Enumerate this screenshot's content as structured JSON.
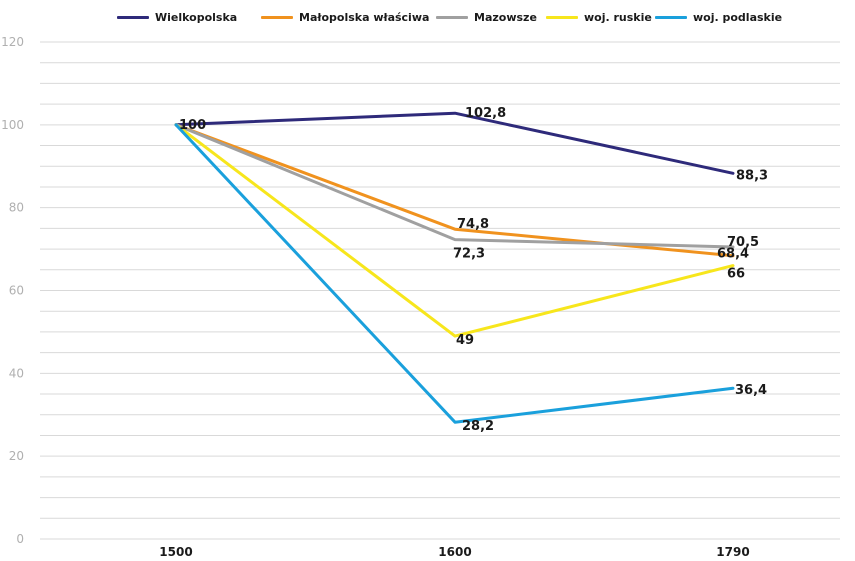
{
  "chart_data": {
    "type": "line",
    "categories": [
      "1500",
      "1600",
      "1790"
    ],
    "ylim": [
      0,
      120
    ],
    "yticks": [
      0,
      20,
      40,
      60,
      80,
      100,
      120
    ],
    "grid": true,
    "legend_position": "top",
    "series": [
      {
        "name": "Wielkopolska",
        "color": "#2e2a7a",
        "values": [
          100,
          102.8,
          88.3
        ],
        "labels": [
          "100",
          "102,8",
          "88,3"
        ]
      },
      {
        "name": "Małopolska właściwa",
        "color": "#f0921e",
        "values": [
          100,
          74.8,
          68.4
        ],
        "labels": [
          "",
          "74,8",
          "68,4"
        ]
      },
      {
        "name": "Mazowsze",
        "color": "#a0a0a0",
        "values": [
          100,
          72.3,
          70.5
        ],
        "labels": [
          "",
          "72,3",
          "70,5"
        ]
      },
      {
        "name": "woj. ruskie",
        "color": "#f7e61c",
        "values": [
          100,
          49,
          66
        ],
        "labels": [
          "",
          "49",
          "66"
        ]
      },
      {
        "name": "woj. podlaskie",
        "color": "#1aa0dc",
        "values": [
          100,
          28.2,
          36.4
        ],
        "labels": [
          "",
          "28,2",
          "36,4"
        ]
      }
    ]
  }
}
